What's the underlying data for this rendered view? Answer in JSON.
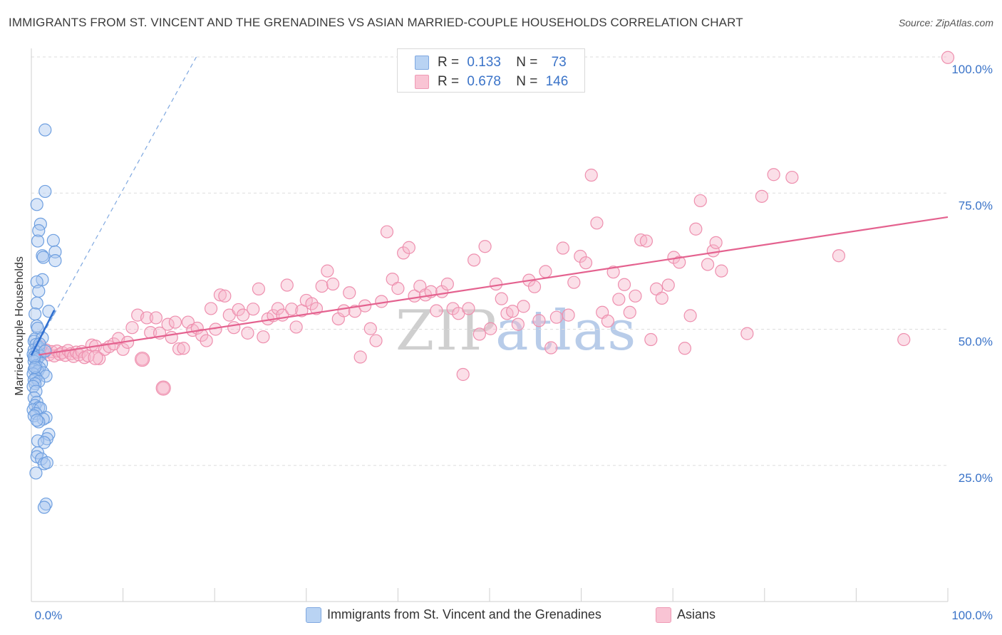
{
  "title": "IMMIGRANTS FROM ST. VINCENT AND THE GRENADINES VS ASIAN MARRIED-COUPLE HOUSEHOLDS CORRELATION CHART",
  "source": "Source: ZipAtlas.com",
  "watermark": {
    "zip": "ZIP",
    "atlas": "atlas"
  },
  "legend_top": [
    {
      "r_label": "R =",
      "r_value": "0.133",
      "n_label": "N =",
      "n_value": "73"
    },
    {
      "r_label": "R =",
      "r_value": "0.678",
      "n_label": "N =",
      "n_value": "146"
    }
  ],
  "legend_bottom": [
    {
      "label": "Immigrants from St. Vincent and the Grenadines"
    },
    {
      "label": "Asians"
    }
  ],
  "colors": {
    "blue_fill": "#aac8f0",
    "blue_stroke": "#6e9fe0",
    "blue_line": "#2f6fd0",
    "pink_fill": "#f7b9cc",
    "pink_stroke": "#ee8fae",
    "pink_line": "#e4628f",
    "tick_text": "#3a73c8",
    "grid": "#dddddd"
  },
  "chart_data": {
    "type": "scatter",
    "title": "IMMIGRANTS FROM ST. VINCENT AND THE GRENADINES VS ASIAN MARRIED-COUPLE HOUSEHOLDS CORRELATION CHART",
    "xlabel": "",
    "ylabel": "Married-couple Households",
    "xlim": [
      0,
      100
    ],
    "ylim": [
      0,
      100
    ],
    "x_tick_labels": [
      "0.0%",
      "100.0%"
    ],
    "y_tick_labels": [
      "100.0%",
      "75.0%",
      "50.0%",
      "25.0%"
    ],
    "y_ticks": [
      100,
      75,
      50,
      25
    ],
    "grid": "horizontal dashed",
    "legend_placement": "top-center",
    "series": [
      {
        "name": "Immigrants from St. Vincent and the Grenadines",
        "color": "#aac8f0",
        "r": 0.133,
        "n": 73,
        "trend": [
          [
            0,
            45.2
          ],
          [
            2.5,
            53.5
          ]
        ],
        "trend_extended": [
          [
            0,
            45.2
          ],
          [
            18.0,
            100
          ]
        ],
        "points": [
          [
            1.5,
            86.6
          ],
          [
            1.5,
            75.3
          ],
          [
            0.6,
            72.9
          ],
          [
            1.0,
            69.3
          ],
          [
            0.8,
            68.1
          ],
          [
            2.4,
            66.3
          ],
          [
            0.7,
            66.2
          ],
          [
            2.6,
            64.2
          ],
          [
            1.2,
            63.5
          ],
          [
            1.3,
            63.2
          ],
          [
            2.6,
            62.6
          ],
          [
            1.2,
            59.1
          ],
          [
            0.6,
            58.7
          ],
          [
            0.8,
            57.0
          ],
          [
            0.6,
            54.8
          ],
          [
            1.9,
            53.3
          ],
          [
            0.4,
            52.8
          ],
          [
            0.6,
            50.6
          ],
          [
            0.7,
            50.2
          ],
          [
            0.4,
            48.2
          ],
          [
            0.3,
            47.8
          ],
          [
            1.2,
            48.4
          ],
          [
            0.5,
            47.2
          ],
          [
            0.8,
            46.7
          ],
          [
            0.3,
            46.2
          ],
          [
            0.6,
            45.8
          ],
          [
            0.2,
            45.4
          ],
          [
            0.9,
            45.1
          ],
          [
            0.4,
            44.7
          ],
          [
            0.6,
            44.4
          ],
          [
            0.3,
            44.1
          ],
          [
            1.1,
            43.7
          ],
          [
            0.5,
            43.3
          ],
          [
            0.9,
            42.9
          ],
          [
            0.3,
            42.6
          ],
          [
            0.7,
            42.3
          ],
          [
            1.3,
            42.0
          ],
          [
            0.2,
            41.8
          ],
          [
            1.6,
            41.4
          ],
          [
            0.5,
            41.1
          ],
          [
            0.3,
            40.7
          ],
          [
            0.8,
            40.4
          ],
          [
            0.4,
            40.0
          ],
          [
            0.2,
            39.5
          ],
          [
            0.5,
            38.6
          ],
          [
            0.3,
            37.4
          ],
          [
            0.6,
            36.6
          ],
          [
            0.4,
            36.0
          ],
          [
            0.8,
            35.6
          ],
          [
            0.2,
            35.2
          ],
          [
            1.0,
            35.5
          ],
          [
            0.5,
            34.5
          ],
          [
            0.3,
            34.1
          ],
          [
            1.6,
            33.8
          ],
          [
            1.3,
            33.5
          ],
          [
            0.8,
            33.0
          ],
          [
            0.6,
            33.3
          ],
          [
            1.9,
            30.7
          ],
          [
            1.7,
            29.9
          ],
          [
            0.7,
            29.5
          ],
          [
            1.4,
            29.2
          ],
          [
            0.7,
            27.3
          ],
          [
            0.6,
            26.6
          ],
          [
            1.1,
            26.2
          ],
          [
            1.4,
            25.3
          ],
          [
            1.7,
            25.5
          ],
          [
            0.5,
            23.6
          ],
          [
            1.6,
            17.9
          ],
          [
            1.4,
            17.3
          ],
          [
            0.3,
            44.9
          ],
          [
            0.9,
            47.3
          ],
          [
            1.5,
            46.0
          ],
          [
            0.4,
            43.0
          ]
        ]
      },
      {
        "name": "Asians",
        "color": "#f7b9cc",
        "r": 0.678,
        "n": 146,
        "trend": [
          [
            0.8,
            45.3
          ],
          [
            100,
            70.6
          ]
        ],
        "points": [
          [
            1.0,
            46.8
          ],
          [
            1.3,
            45.6
          ],
          [
            1.6,
            46.2
          ],
          [
            1.9,
            45.3
          ],
          [
            2.2,
            45.9
          ],
          [
            2.5,
            45.1
          ],
          [
            2.8,
            46.0
          ],
          [
            3.1,
            45.4
          ],
          [
            3.4,
            45.7
          ],
          [
            3.7,
            45.2
          ],
          [
            4.0,
            46.1
          ],
          [
            4.3,
            45.5
          ],
          [
            4.6,
            45.0
          ],
          [
            4.9,
            45.8
          ],
          [
            5.2,
            45.3
          ],
          [
            5.5,
            45.9
          ],
          [
            5.8,
            44.8
          ],
          [
            6.2,
            45.1
          ],
          [
            6.6,
            47.1
          ],
          [
            7.0,
            46.9
          ],
          [
            7.4,
            44.6
          ],
          [
            8.0,
            46.3
          ],
          [
            8.5,
            46.8
          ],
          [
            9.0,
            47.3
          ],
          [
            9.5,
            48.3
          ],
          [
            10.0,
            46.3
          ],
          [
            10.5,
            47.6
          ],
          [
            11.0,
            50.3
          ],
          [
            11.6,
            52.6
          ],
          [
            12.1,
            44.5
          ],
          [
            12.6,
            52.1
          ],
          [
            13.0,
            49.4
          ],
          [
            13.6,
            52.1
          ],
          [
            14.0,
            49.3
          ],
          [
            14.4,
            39.2
          ],
          [
            14.9,
            50.9
          ],
          [
            15.3,
            48.5
          ],
          [
            15.7,
            51.3
          ],
          [
            16.1,
            46.4
          ],
          [
            16.6,
            46.5
          ],
          [
            17.1,
            51.3
          ],
          [
            17.6,
            49.8
          ],
          [
            18.1,
            50.2
          ],
          [
            18.6,
            48.9
          ],
          [
            19.1,
            47.9
          ],
          [
            19.6,
            53.8
          ],
          [
            20.1,
            50.0
          ],
          [
            20.6,
            56.3
          ],
          [
            21.1,
            56.1
          ],
          [
            21.6,
            52.6
          ],
          [
            22.1,
            50.3
          ],
          [
            22.6,
            53.6
          ],
          [
            23.1,
            52.6
          ],
          [
            23.6,
            49.3
          ],
          [
            24.2,
            53.7
          ],
          [
            24.8,
            57.4
          ],
          [
            25.3,
            48.6
          ],
          [
            25.8,
            51.9
          ],
          [
            26.4,
            52.5
          ],
          [
            26.9,
            53.8
          ],
          [
            27.4,
            52.6
          ],
          [
            27.9,
            58.1
          ],
          [
            28.4,
            53.7
          ],
          [
            28.9,
            50.4
          ],
          [
            29.5,
            53.4
          ],
          [
            30.0,
            55.3
          ],
          [
            30.6,
            54.7
          ],
          [
            31.1,
            53.8
          ],
          [
            31.7,
            57.9
          ],
          [
            32.3,
            60.7
          ],
          [
            32.9,
            58.3
          ],
          [
            33.5,
            51.9
          ],
          [
            34.1,
            53.4
          ],
          [
            34.7,
            56.7
          ],
          [
            35.3,
            53.3
          ],
          [
            35.9,
            44.9
          ],
          [
            36.4,
            54.3
          ],
          [
            37.0,
            50.1
          ],
          [
            37.6,
            47.9
          ],
          [
            38.2,
            55.1
          ],
          [
            38.8,
            67.9
          ],
          [
            39.4,
            59.2
          ],
          [
            40.0,
            57.5
          ],
          [
            40.6,
            64.0
          ],
          [
            41.2,
            65.0
          ],
          [
            41.8,
            56.1
          ],
          [
            42.4,
            57.9
          ],
          [
            43.0,
            56.3
          ],
          [
            43.6,
            56.9
          ],
          [
            44.2,
            53.4
          ],
          [
            44.8,
            56.9
          ],
          [
            45.4,
            58.3
          ],
          [
            46.0,
            53.8
          ],
          [
            46.6,
            52.9
          ],
          [
            47.1,
            41.7
          ],
          [
            47.7,
            53.8
          ],
          [
            48.3,
            62.7
          ],
          [
            48.9,
            49.1
          ],
          [
            49.5,
            65.2
          ],
          [
            50.1,
            50.1
          ],
          [
            50.7,
            58.3
          ],
          [
            51.3,
            55.6
          ],
          [
            51.9,
            52.9
          ],
          [
            52.5,
            53.3
          ],
          [
            53.1,
            50.9
          ],
          [
            53.7,
            54.2
          ],
          [
            54.3,
            59.0
          ],
          [
            54.9,
            57.8
          ],
          [
            55.4,
            51.6
          ],
          [
            56.1,
            60.6
          ],
          [
            56.7,
            46.6
          ],
          [
            57.3,
            52.2
          ],
          [
            58.0,
            64.9
          ],
          [
            58.6,
            52.6
          ],
          [
            59.2,
            58.6
          ],
          [
            59.9,
            63.4
          ],
          [
            60.5,
            62.2
          ],
          [
            61.1,
            78.3
          ],
          [
            61.7,
            69.5
          ],
          [
            62.3,
            53.1
          ],
          [
            62.9,
            51.5
          ],
          [
            63.5,
            60.5
          ],
          [
            64.1,
            55.5
          ],
          [
            64.7,
            58.2
          ],
          [
            65.3,
            53.1
          ],
          [
            65.9,
            56.1
          ],
          [
            66.5,
            66.4
          ],
          [
            67.1,
            66.2
          ],
          [
            67.6,
            48.1
          ],
          [
            68.2,
            57.4
          ],
          [
            68.8,
            55.7
          ],
          [
            69.5,
            58.1
          ],
          [
            70.1,
            63.2
          ],
          [
            70.7,
            62.3
          ],
          [
            71.3,
            46.5
          ],
          [
            71.9,
            52.5
          ],
          [
            72.5,
            68.4
          ],
          [
            73.0,
            73.6
          ],
          [
            73.8,
            61.9
          ],
          [
            74.4,
            64.4
          ],
          [
            74.7,
            65.9
          ],
          [
            75.3,
            60.7
          ],
          [
            78.1,
            49.2
          ],
          [
            79.7,
            74.4
          ],
          [
            81.0,
            78.4
          ],
          [
            83.0,
            77.9
          ],
          [
            88.1,
            63.5
          ],
          [
            95.2,
            48.1
          ],
          [
            100.0,
            99.9
          ]
        ]
      }
    ]
  }
}
